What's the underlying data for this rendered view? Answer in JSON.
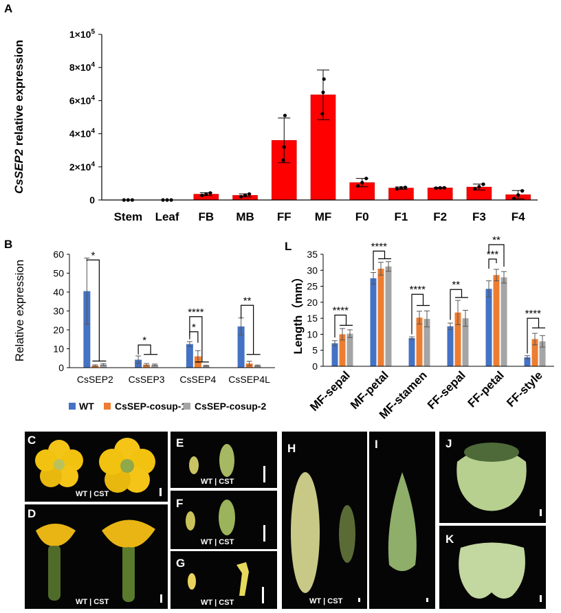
{
  "panels": {
    "A": "A",
    "B": "B",
    "L": "L",
    "C": "C",
    "D": "D",
    "E": "E",
    "F": "F",
    "G": "G",
    "H": "H",
    "I": "I",
    "J": "J",
    "K": "K"
  },
  "photo_caption": "WT | CST",
  "legend": {
    "wt": "WT",
    "cosup1": "CsSEP-cosup-1",
    "cosup2": "CsSEP-cosup-2"
  },
  "colors": {
    "wt": "#4472c4",
    "cosup1": "#ed7d31",
    "cosup2": "#a5a5a5",
    "bar_a": "#ff0000"
  },
  "chart_data": [
    {
      "id": "A",
      "type": "bar",
      "ylabel_prefix": "Cs",
      "ylabel_gene": "SEP2",
      "ylabel_suffix": " relative expression",
      "ylim": [
        0,
        100000
      ],
      "yticks": [
        0,
        20000,
        40000,
        60000,
        80000,
        100000
      ],
      "ytick_labels": [
        "0",
        "2×10",
        "4×10",
        "6×10",
        "8×10",
        "1×10"
      ],
      "ytick_exponents": [
        "",
        "4",
        "4",
        "4",
        "4",
        "5"
      ],
      "categories": [
        "Stem",
        "Leaf",
        "FB",
        "MB",
        "FF",
        "MF",
        "F0",
        "F1",
        "F2",
        "F3",
        "F4"
      ],
      "values": [
        0,
        0,
        3500,
        2800,
        36000,
        63500,
        10500,
        7200,
        7300,
        7800,
        3200
      ],
      "errors": [
        0,
        0,
        900,
        900,
        13500,
        15000,
        2500,
        700,
        300,
        1800,
        2500
      ],
      "points": [
        [
          0,
          0,
          0
        ],
        [
          0,
          0,
          0
        ],
        [
          2800,
          3600,
          4200
        ],
        [
          2000,
          2900,
          3600
        ],
        [
          24000,
          32000,
          51000
        ],
        [
          52000,
          65000,
          73000
        ],
        [
          8500,
          10500,
          13000
        ],
        [
          6700,
          7300,
          7600
        ],
        [
          7100,
          7300,
          7400
        ],
        [
          6800,
          8000,
          9500
        ],
        [
          900,
          3000,
          5500
        ]
      ]
    },
    {
      "id": "B",
      "type": "bar",
      "ylabel": "Relative expression",
      "ylim": [
        0,
        60
      ],
      "yticks": [
        0,
        10,
        20,
        30,
        40,
        50,
        60
      ],
      "categories": [
        "CsSEP2",
        "CsSEP3",
        "CsSEP4",
        "CsSEP4L"
      ],
      "series": [
        {
          "name": "WT",
          "values": [
            40.5,
            4.2,
            12.5,
            21.8
          ],
          "errors": [
            17.5,
            2.0,
            1.3,
            4.5
          ]
        },
        {
          "name": "CsSEP-cosup-1",
          "values": [
            1.1,
            1.6,
            6.0,
            2.2
          ],
          "errors": [
            0.4,
            0.6,
            3.0,
            1.2
          ]
        },
        {
          "name": "CsSEP-cosup-2",
          "values": [
            1.7,
            1.5,
            1.0,
            1.1
          ],
          "errors": [
            0.5,
            0.4,
            0.3,
            0.3
          ]
        }
      ],
      "significance": [
        "*",
        "*",
        "****",
        "*",
        "**"
      ]
    },
    {
      "id": "L",
      "type": "bar",
      "ylabel": "Length（mm）",
      "ylim": [
        0,
        35
      ],
      "yticks": [
        0,
        5,
        10,
        15,
        20,
        25,
        30,
        35
      ],
      "categories": [
        "MF-sepal",
        "MF-petal",
        "MF-stamen",
        "FF-sepal",
        "FF-petal",
        "FF-style"
      ],
      "series": [
        {
          "name": "WT",
          "values": [
            7.2,
            27.5,
            8.8,
            12.5,
            24.2,
            2.8
          ],
          "errors": [
            0.8,
            1.8,
            0.4,
            1.0,
            2.5,
            0.5
          ]
        },
        {
          "name": "CsSEP-cosup-1",
          "values": [
            10.0,
            30.5,
            15.2,
            16.8,
            28.5,
            8.5
          ],
          "errors": [
            1.8,
            2.0,
            2.0,
            3.8,
            1.8,
            1.8
          ]
        },
        {
          "name": "CsSEP-cosup-2",
          "values": [
            10.2,
            31.2,
            14.8,
            15.0,
            27.8,
            7.8
          ],
          "errors": [
            1.2,
            1.5,
            2.5,
            2.5,
            1.8,
            1.8
          ]
        }
      ],
      "significance": [
        "****",
        "****",
        "****",
        "**",
        "**",
        "***",
        "****"
      ]
    }
  ]
}
